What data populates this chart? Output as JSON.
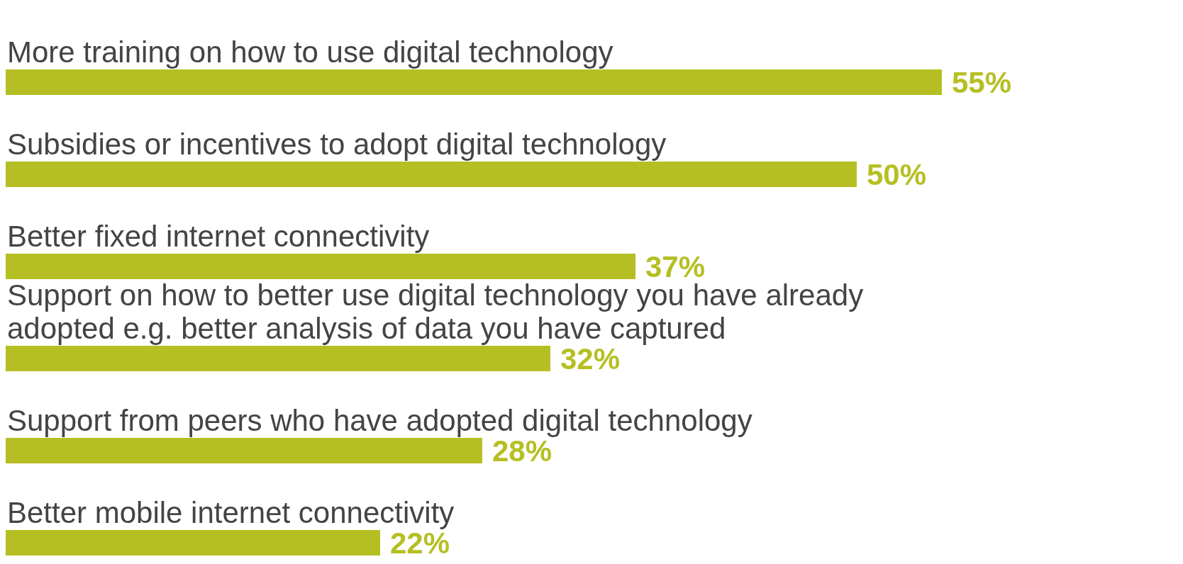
{
  "chart_data": {
    "type": "bar",
    "orientation": "horizontal",
    "categories": [
      "More training on how to use digital technology",
      "Subsidies or incentives to adopt digital technology",
      "Better fixed internet connectivity",
      "Support on how to better use digital technology you have already adopted e.g. better analysis of data you have captured",
      "Support from peers who have adopted digital technology",
      "Better mobile internet connectivity"
    ],
    "values": [
      55,
      50,
      37,
      32,
      28,
      22
    ],
    "value_labels": [
      "55%",
      "50%",
      "37%",
      "32%",
      "28%",
      "22%"
    ],
    "color": "#b5bf23"
  }
}
